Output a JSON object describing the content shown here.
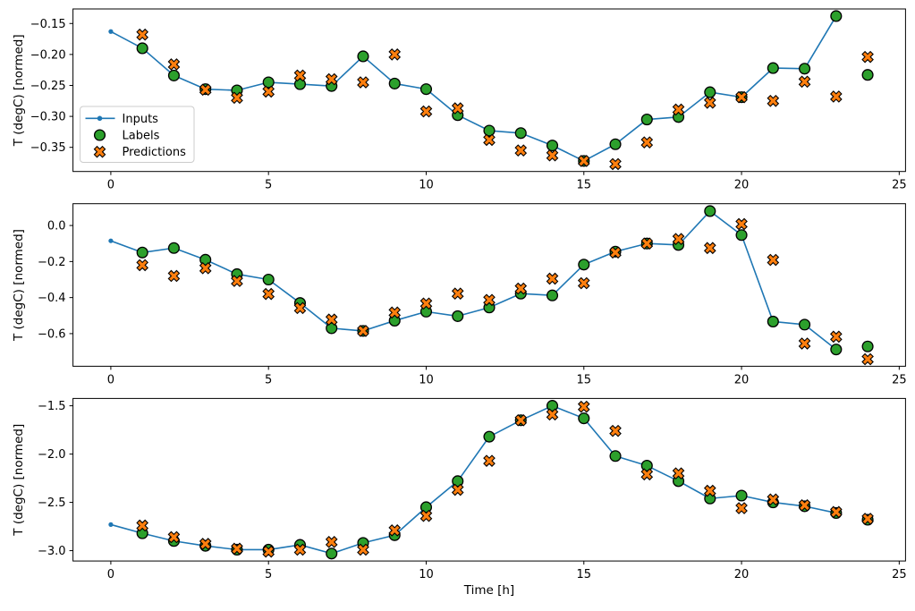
{
  "figure": {
    "background": "#ffffff",
    "colors": {
      "inputs": "#1f77b4",
      "labels": "#2ca02c",
      "predictions": "#ff7f0e",
      "marker_edge": "#000000",
      "legend_border": "#cccccc",
      "spine": "#000000"
    },
    "x_axis": {
      "label": "Time [h]",
      "lim": [
        -1.2,
        25.2
      ],
      "ticks": [
        0,
        5,
        10,
        15,
        20,
        25
      ],
      "tick_labels": [
        "0",
        "5",
        "10",
        "15",
        "20",
        "25"
      ]
    },
    "legend": {
      "items": [
        {
          "label": "Inputs",
          "marker": "line-dot"
        },
        {
          "label": "Labels",
          "marker": "circle"
        },
        {
          "label": "Predictions",
          "marker": "x"
        }
      ]
    }
  },
  "chart_data": [
    {
      "type": "line",
      "ylabel": "T (degC) [normed]",
      "ylim": [
        -0.389,
        -0.1265
      ],
      "y_ticks": [
        -0.15,
        -0.2,
        -0.25,
        -0.3,
        -0.35
      ],
      "y_tick_labels": [
        "−0.15",
        "−0.20",
        "−0.25",
        "−0.30",
        "−0.35"
      ],
      "series": [
        {
          "name": "Inputs",
          "marker": "line-dot",
          "x": [
            0,
            1,
            2,
            3,
            4,
            5,
            6,
            7,
            8,
            9,
            10,
            11,
            12,
            13,
            14,
            15,
            16,
            17,
            18,
            19,
            20,
            21,
            22,
            23
          ],
          "y": [
            -0.163,
            -0.19,
            -0.234,
            -0.256,
            -0.258,
            -0.245,
            -0.248,
            -0.251,
            -0.203,
            -0.247,
            -0.256,
            -0.298,
            -0.323,
            -0.327,
            -0.347,
            -0.372,
            -0.345,
            -0.305,
            -0.301,
            -0.261,
            -0.269,
            -0.222,
            -0.223,
            -0.138
          ]
        },
        {
          "name": "Labels",
          "marker": "circle",
          "x": [
            1,
            2,
            3,
            4,
            5,
            6,
            7,
            8,
            9,
            10,
            11,
            12,
            13,
            14,
            15,
            16,
            17,
            18,
            19,
            20,
            21,
            22,
            23,
            24
          ],
          "y": [
            -0.19,
            -0.234,
            -0.256,
            -0.258,
            -0.245,
            -0.248,
            -0.251,
            -0.203,
            -0.247,
            -0.256,
            -0.298,
            -0.323,
            -0.327,
            -0.347,
            -0.372,
            -0.345,
            -0.305,
            -0.301,
            -0.261,
            -0.269,
            -0.222,
            -0.223,
            -0.138,
            -0.233
          ]
        },
        {
          "name": "Predictions",
          "marker": "x",
          "x": [
            1,
            2,
            3,
            4,
            5,
            6,
            7,
            8,
            9,
            10,
            11,
            12,
            13,
            14,
            15,
            16,
            17,
            18,
            19,
            20,
            21,
            22,
            23,
            24
          ],
          "y": [
            -0.168,
            -0.216,
            -0.257,
            -0.27,
            -0.26,
            -0.234,
            -0.24,
            -0.245,
            -0.2,
            -0.292,
            -0.287,
            -0.338,
            -0.355,
            -0.363,
            -0.372,
            -0.377,
            -0.342,
            -0.289,
            -0.278,
            -0.269,
            -0.275,
            -0.244,
            -0.268,
            -0.204
          ]
        }
      ]
    },
    {
      "type": "line",
      "ylabel": "T (degC) [normed]",
      "ylim": [
        -0.781,
        0.121
      ],
      "y_ticks": [
        0.0,
        -0.2,
        -0.4,
        -0.6
      ],
      "y_tick_labels": [
        "0.0",
        "−0.2",
        "−0.4",
        "−0.6"
      ],
      "series": [
        {
          "name": "Inputs",
          "marker": "line-dot",
          "x": [
            0,
            1,
            2,
            3,
            4,
            5,
            6,
            7,
            8,
            9,
            10,
            11,
            12,
            13,
            14,
            15,
            16,
            17,
            18,
            19,
            20,
            21,
            22,
            23
          ],
          "y": [
            -0.085,
            -0.15,
            -0.125,
            -0.19,
            -0.27,
            -0.3,
            -0.43,
            -0.57,
            -0.585,
            -0.528,
            -0.478,
            -0.503,
            -0.455,
            -0.378,
            -0.388,
            -0.217,
            -0.145,
            -0.1,
            -0.108,
            0.08,
            -0.053,
            -0.533,
            -0.55,
            -0.688
          ]
        },
        {
          "name": "Labels",
          "marker": "circle",
          "x": [
            1,
            2,
            3,
            4,
            5,
            6,
            7,
            8,
            9,
            10,
            11,
            12,
            13,
            14,
            15,
            16,
            17,
            18,
            19,
            20,
            21,
            22,
            23,
            24
          ],
          "y": [
            -0.15,
            -0.125,
            -0.19,
            -0.27,
            -0.3,
            -0.43,
            -0.57,
            -0.585,
            -0.528,
            -0.478,
            -0.503,
            -0.455,
            -0.378,
            -0.388,
            -0.217,
            -0.145,
            -0.1,
            -0.108,
            0.08,
            -0.053,
            -0.533,
            -0.55,
            -0.688,
            -0.671
          ]
        },
        {
          "name": "Predictions",
          "marker": "x",
          "x": [
            1,
            2,
            3,
            4,
            5,
            6,
            7,
            8,
            9,
            10,
            11,
            12,
            13,
            14,
            15,
            16,
            17,
            18,
            19,
            20,
            21,
            22,
            23,
            24
          ],
          "y": [
            -0.22,
            -0.28,
            -0.237,
            -0.308,
            -0.38,
            -0.458,
            -0.522,
            -0.585,
            -0.483,
            -0.433,
            -0.378,
            -0.413,
            -0.35,
            -0.295,
            -0.32,
            -0.15,
            -0.1,
            -0.075,
            -0.125,
            0.008,
            -0.191,
            -0.655,
            -0.617,
            -0.742
          ]
        }
      ]
    },
    {
      "type": "line",
      "ylabel": "T (degC) [normed]",
      "ylim": [
        -3.107,
        -1.424
      ],
      "y_ticks": [
        -1.5,
        -2.0,
        -2.5,
        -3.0
      ],
      "y_tick_labels": [
        "−1.5",
        "−2.0",
        "−2.5",
        "−3.0"
      ],
      "series": [
        {
          "name": "Inputs",
          "marker": "line-dot",
          "x": [
            0,
            1,
            2,
            3,
            4,
            5,
            6,
            7,
            8,
            9,
            10,
            11,
            12,
            13,
            14,
            15,
            16,
            17,
            18,
            19,
            20,
            21,
            22,
            23
          ],
          "y": [
            -2.73,
            -2.82,
            -2.9,
            -2.95,
            -2.99,
            -2.99,
            -2.94,
            -3.03,
            -2.92,
            -2.84,
            -2.55,
            -2.28,
            -1.82,
            -1.65,
            -1.5,
            -1.63,
            -2.02,
            -2.12,
            -2.28,
            -2.46,
            -2.43,
            -2.5,
            -2.54,
            -2.61
          ]
        },
        {
          "name": "Labels",
          "marker": "circle",
          "x": [
            1,
            2,
            3,
            4,
            5,
            6,
            7,
            8,
            9,
            10,
            11,
            12,
            13,
            14,
            15,
            16,
            17,
            18,
            19,
            20,
            21,
            22,
            23,
            24
          ],
          "y": [
            -2.82,
            -2.9,
            -2.95,
            -2.99,
            -2.99,
            -2.94,
            -3.03,
            -2.92,
            -2.84,
            -2.55,
            -2.28,
            -1.82,
            -1.65,
            -1.5,
            -1.63,
            -2.02,
            -2.12,
            -2.28,
            -2.46,
            -2.43,
            -2.5,
            -2.54,
            -2.61,
            -2.68
          ]
        },
        {
          "name": "Predictions",
          "marker": "x",
          "x": [
            1,
            2,
            3,
            4,
            5,
            6,
            7,
            8,
            9,
            10,
            11,
            12,
            13,
            14,
            15,
            16,
            17,
            18,
            19,
            20,
            21,
            22,
            23,
            24
          ],
          "y": [
            -2.74,
            -2.86,
            -2.93,
            -2.98,
            -3.01,
            -2.99,
            -2.91,
            -2.99,
            -2.79,
            -2.64,
            -2.37,
            -2.07,
            -1.65,
            -1.59,
            -1.51,
            -1.76,
            -2.21,
            -2.2,
            -2.38,
            -2.56,
            -2.47,
            -2.53,
            -2.6,
            -2.67
          ]
        }
      ]
    }
  ]
}
